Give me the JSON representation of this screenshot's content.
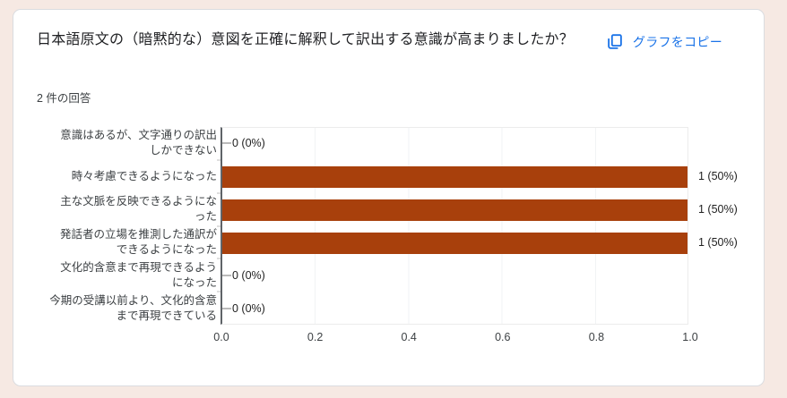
{
  "page": {
    "background": "#f6e9e3"
  },
  "card": {
    "title": "日本語原文の（暗黙的な）意図を正確に解釈して訳出する意識が高まりましたか？",
    "response_count": "2 件の回答",
    "copy_button_label": "グラフをコピー"
  },
  "chart_data": {
    "type": "bar",
    "orientation": "horizontal",
    "categories": [
      "意識はあるが、文字通りの訳出\nしかできない",
      "時々考慮できるようになった",
      "主な文脈を反映できるようにな\nった",
      "発話者の立場を推測した通訳が\nできるようになった",
      "文化的含意まで再現できるよう\nになった",
      "今期の受講以前より、文化的含意\nまで再現できている"
    ],
    "values": [
      0,
      1,
      1,
      1,
      0,
      0
    ],
    "value_labels": [
      "0 (0%)",
      "1 (50%)",
      "1 (50%)",
      "1 (50%)",
      "0 (0%)",
      "0 (0%)"
    ],
    "x_ticks": [
      "0.0",
      "0.2",
      "0.4",
      "0.6",
      "0.8",
      "1.0"
    ],
    "xlim": [
      0,
      1
    ],
    "grid": true,
    "legend": "none",
    "bar_color": "#a8400c"
  },
  "colors": {
    "accent_blue": "#1a73e8",
    "bar": "#a8400c",
    "page_bg": "#f6e9e3",
    "card_border": "#dadce0",
    "title_text": "#202124",
    "secondary_text": "#3c4043"
  }
}
